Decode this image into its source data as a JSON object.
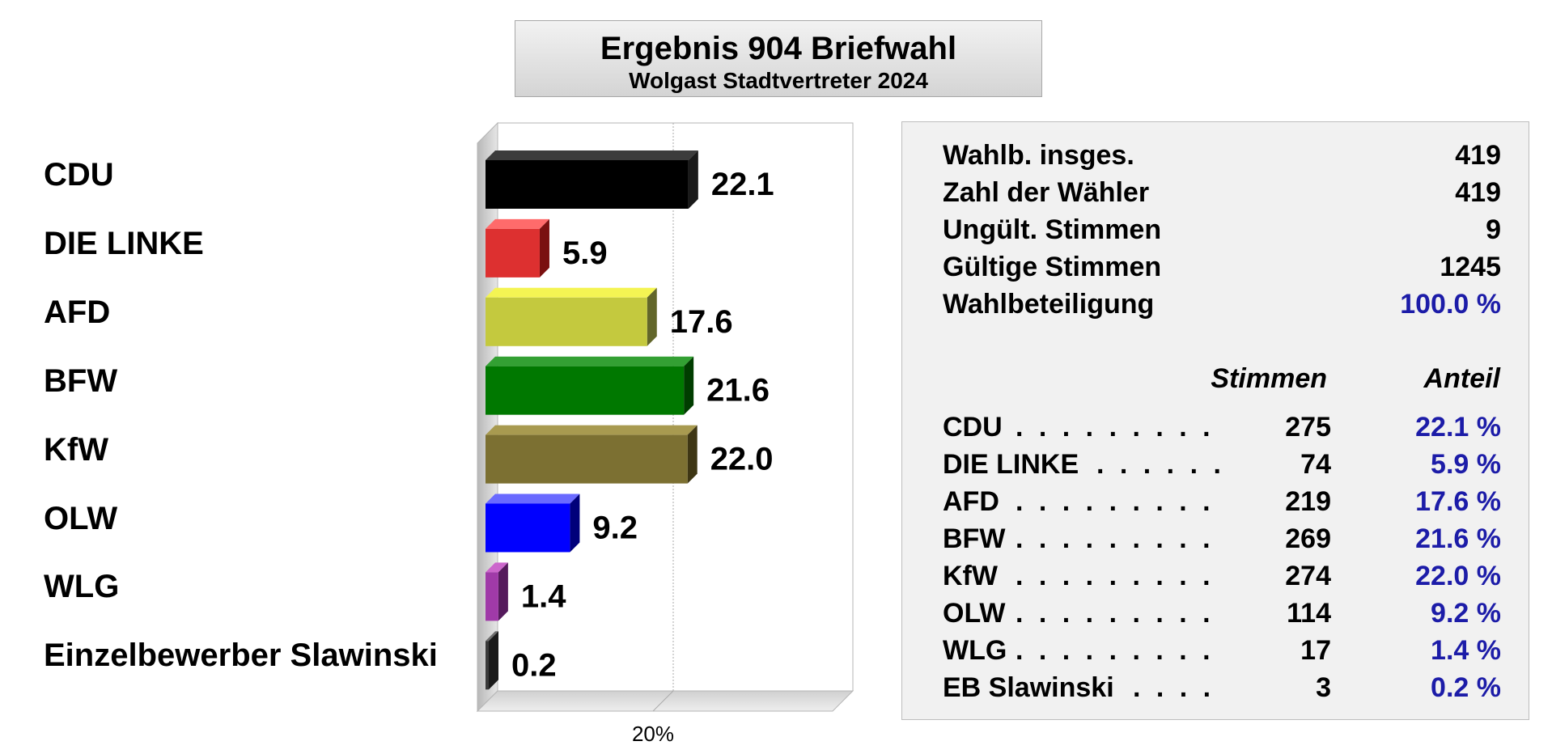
{
  "chart_data": {
    "type": "bar",
    "orientation": "horizontal",
    "title": "Ergebnis 904 Briefwahl",
    "subtitle": "Wolgast Stadtvertreter 2024",
    "categories": [
      "CDU",
      "DIE LINKE",
      "AFD",
      "BFW",
      "KfW",
      "OLW",
      "WLG",
      "Einzelbewerber Slawinski"
    ],
    "values": [
      22.1,
      5.9,
      17.6,
      21.6,
      22.0,
      9.2,
      1.4,
      0.2
    ],
    "value_labels": [
      "22.1",
      "5.9",
      "17.6",
      "21.6",
      "22.0",
      "9.2",
      "1.4",
      "0.2"
    ],
    "xlim": [
      0,
      40
    ],
    "ticks": [
      {
        "value": 20,
        "label": "20%"
      }
    ],
    "colors": [
      "#000000",
      "#dd3030",
      "#c4c93e",
      "#007800",
      "#7c7032",
      "#0000ff",
      "#a03aa8",
      "#3a3a3a"
    ],
    "top_colors": [
      "#3c3c3c",
      "#ff6b6b",
      "#f4f453",
      "#33a033",
      "#a89a50",
      "#6a6aff",
      "#cc66cc",
      "#6e6e6e"
    ],
    "side_colors": [
      "#1a1a1a",
      "#7a1010",
      "#62662a",
      "#003d00",
      "#3e3614",
      "#00007a",
      "#551a5c",
      "#1a1a1a"
    ]
  },
  "stats": [
    {
      "label": "Wahlb. insges.",
      "value": "419"
    },
    {
      "label": "Zahl der Wähler",
      "value": "419"
    },
    {
      "label": "Ungült. Stimmen",
      "value": "9"
    },
    {
      "label": "Gültige Stimmen",
      "value": "1245"
    },
    {
      "label": "Wahlbeteiligung",
      "value": "100.0 %"
    }
  ],
  "results_header": {
    "votes": "Stimmen",
    "share": "Anteil"
  },
  "results": [
    {
      "name": "CDU",
      "dots": ". . . . . . . . .",
      "votes": "275",
      "share": "22.1 %"
    },
    {
      "name": "DIE LINKE",
      "dots": ". . . . . .",
      "votes": "74",
      "share": "5.9 %"
    },
    {
      "name": "AFD",
      "dots": ". . . . . . . . .",
      "votes": "219",
      "share": "17.6 %"
    },
    {
      "name": "BFW",
      "dots": ". . . . . . . . .",
      "votes": "269",
      "share": "21.6 %"
    },
    {
      "name": "KfW",
      "dots": ". . . . . . . . .",
      "votes": "274",
      "share": "22.0 %"
    },
    {
      "name": "OLW",
      "dots": ". . . . . . . . .",
      "votes": "114",
      "share": "9.2 %"
    },
    {
      "name": "WLG",
      "dots": ". . . . . . . . .",
      "votes": "17",
      "share": "1.4 %"
    },
    {
      "name": "EB Slawinski",
      "dots": ". . . .",
      "votes": "3",
      "share": "0.2 %"
    }
  ]
}
